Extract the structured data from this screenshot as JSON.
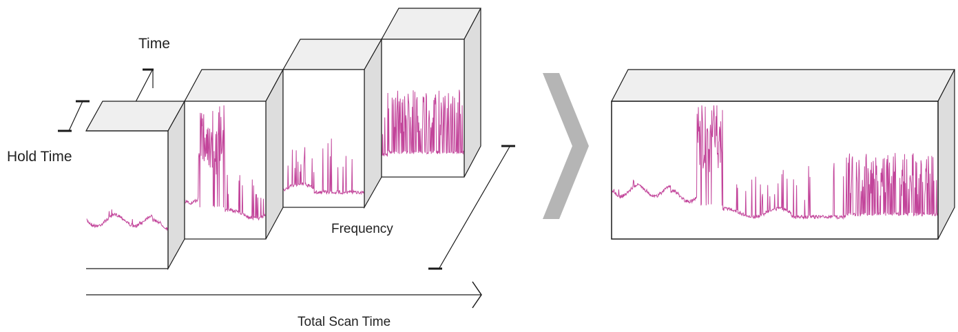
{
  "labels": {
    "time": "Time",
    "hold_time": "Hold Time",
    "frequency": "Frequency",
    "total_scan_time": "Total Scan Time"
  },
  "colors": {
    "signal": "#c2449a",
    "box_top": "#efefef",
    "box_side": "#dddddd",
    "box_front": "#ffffff",
    "outline": "#1a1a1a",
    "arrow_chevron": "#b5b5b5"
  },
  "icons": {
    "transition": "chevron-right-icon"
  }
}
